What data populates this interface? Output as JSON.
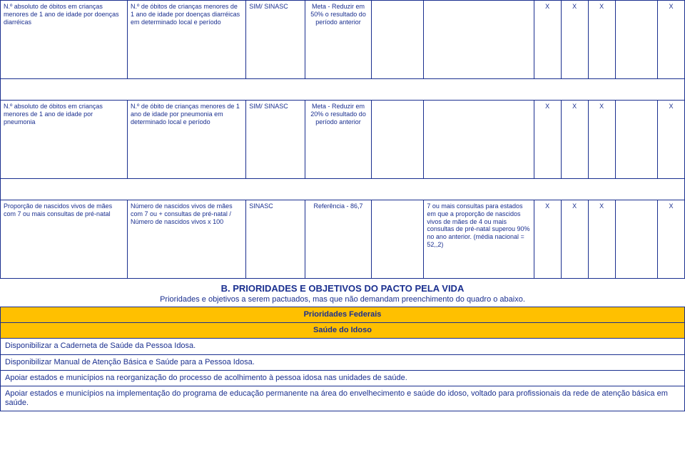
{
  "rows": [
    {
      "c1": "N.º absoluto de óbitos em crianças menores de 1 ano de idade por doenças diarréicas",
      "c2": "N.º de óbitos de crianças menores de 1 ano de idade por doenças diarréicas em determinado local e período",
      "c3": "SIM/ SINASC",
      "c4": "Meta - Reduzir em 50% o resultado do período anterior",
      "c5": "",
      "c6": "",
      "c7": "X",
      "c8": "X",
      "c9": "X",
      "c10": "",
      "c11": "X"
    },
    {
      "c1": "N.º absoluto de óbitos em crianças menores de 1 ano de idade por pneumonia",
      "c2": "N.º de óbito de crianças menores de 1 ano de idade por pneumonia em determinado local e período",
      "c3": "SIM/ SINASC",
      "c4": "Meta - Reduzir em 20% o resultado do período anterior",
      "c5": "",
      "c6": "",
      "c7": "X",
      "c8": "X",
      "c9": "X",
      "c10": "",
      "c11": "X"
    },
    {
      "c1": "Proporção de nascidos vivos de mães com 7 ou mais consultas de pré-natal",
      "c2": "Número de nascidos vivos de mães com 7 ou + consultas de pré-natal / Número de nascidos vivos x 100",
      "c3": "SINASC",
      "c4": "Referência - 86,7",
      "c5": "",
      "c6": "7 ou mais consultas para estados em que a proporção de nascidos vivos de mães de 4 ou mais consultas de pré-natal superou 90% no ano anterior. (média nacional = 52,,2)",
      "c7": "X",
      "c8": "X",
      "c9": "X",
      "c10": "",
      "c11": "X"
    }
  ],
  "sectionB": {
    "title": "B. PRIORIDADES E OBJETIVOS DO PACTO PELA VIDA",
    "subtitle": "Prioridades e objetivos a serem pactuados, mas que não demandam preenchimento do quadro o abaixo.",
    "header": "Prioridades Federais",
    "subheader": "Saúde do Idoso",
    "items": [
      "Disponibilizar a Caderneta de Saúde da Pessoa Idosa.",
      "Disponibilizar Manual de Atenção Básica e Saúde para a Pessoa Idosa.",
      "Apoiar estados e municípios na reorganização do processo de acolhimento à pessoa idosa nas unidades de saúde.",
      "Apoiar estados e municípios na implementação do programa de educação permanente na área do envelhecimento e saúde do idoso, voltado para profissionais da rede de atenção básica em saúde."
    ]
  },
  "colors": {
    "border": "#1a2f8f",
    "text": "#1a2f8f",
    "headerBg": "#ffc000"
  }
}
